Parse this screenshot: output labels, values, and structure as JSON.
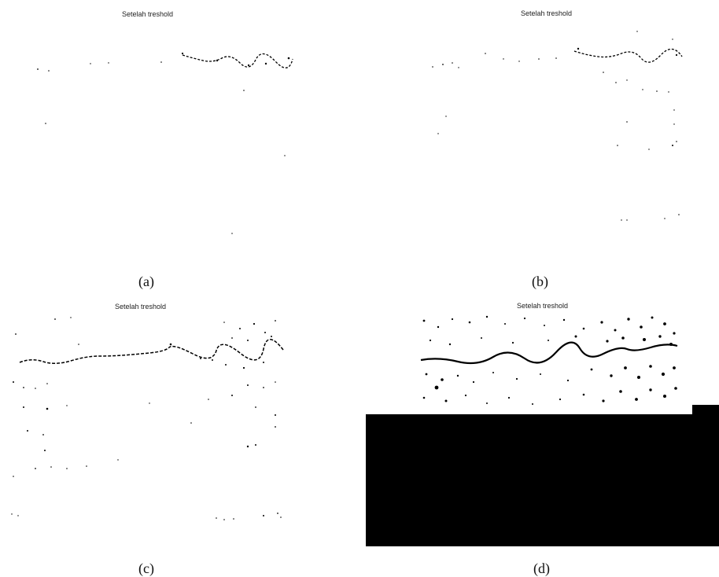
{
  "panels": [
    {
      "id": "a",
      "title": "Setelah treshold",
      "caption": "(a)"
    },
    {
      "id": "b",
      "title": "Setelah treshold",
      "caption": "(b)"
    },
    {
      "id": "c",
      "title": "Setelah treshold",
      "caption": "(c)"
    },
    {
      "id": "d",
      "title": "Setelah treshold",
      "caption": "(d)"
    }
  ],
  "colors": {
    "background": "#ffffff",
    "foreground": "#000000"
  }
}
